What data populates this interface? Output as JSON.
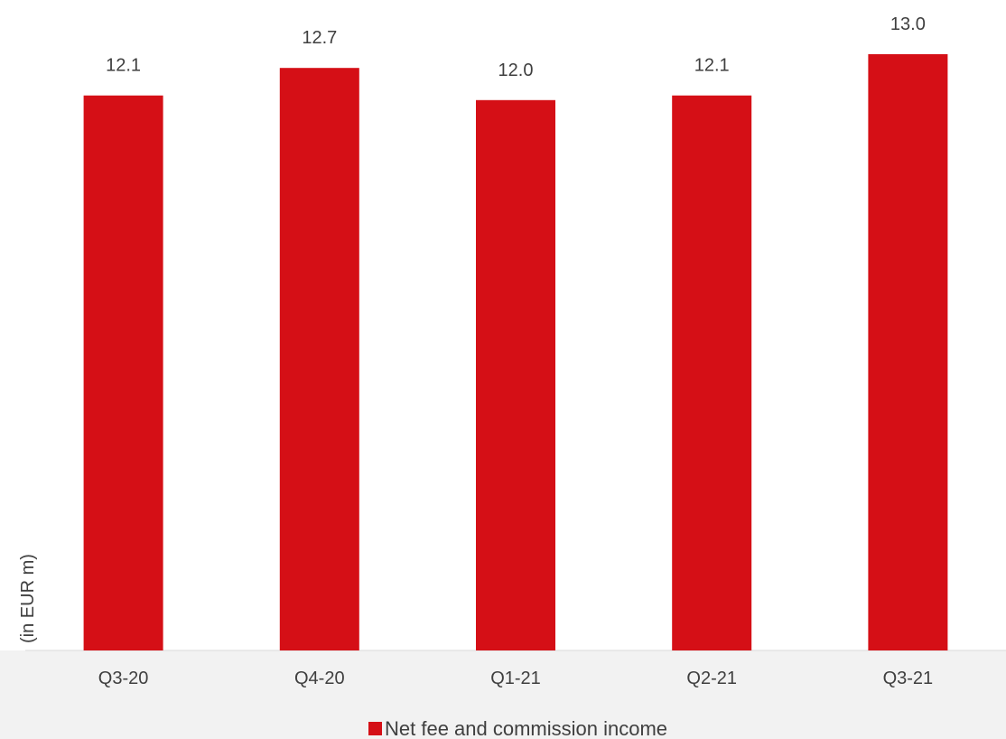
{
  "chart_data": {
    "type": "bar",
    "categories": [
      "Q3-20",
      "Q4-20",
      "Q1-21",
      "Q2-21",
      "Q3-21"
    ],
    "series": [
      {
        "name": "Net fee and commission income",
        "values": [
          12.1,
          12.7,
          12.0,
          12.1,
          13.0
        ],
        "color": "#d50f16"
      }
    ],
    "data_labels": [
      "12.1",
      "12.7",
      "12.0",
      "12.1",
      "13.0"
    ],
    "title": "",
    "xlabel": "",
    "ylabel": "(in EUR m)",
    "ylim": [
      0,
      13.3
    ],
    "grid": false,
    "legend_position": "bottom"
  },
  "colors": {
    "bar": "#d50f16",
    "axis_band": "#f2f2f2",
    "axis_line": "#d9d9d9",
    "text": "#3f3f3f"
  }
}
